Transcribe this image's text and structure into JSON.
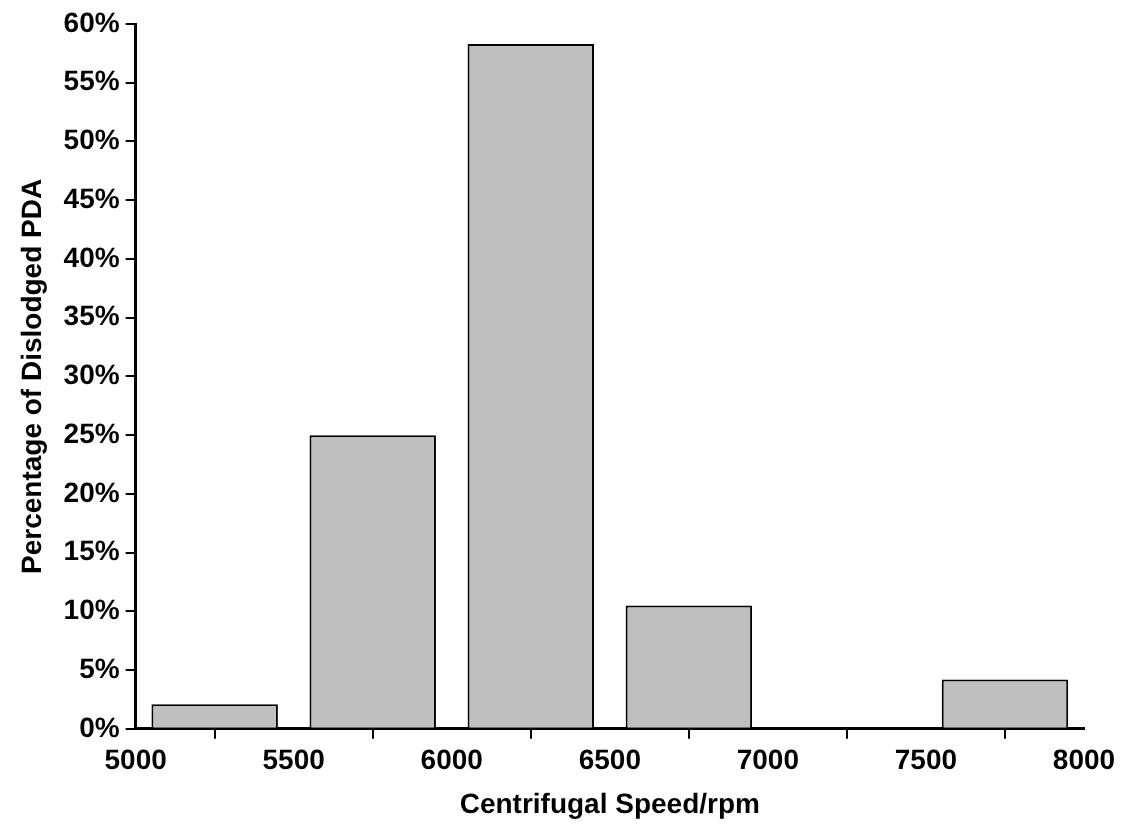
{
  "chart_data": {
    "type": "bar",
    "xlabel": "Centrifugal Speed/rpm",
    "ylabel": "Percentage of Dislodged PDA",
    "x": [
      5250,
      5750,
      6250,
      6750,
      7750
    ],
    "values": [
      2.1,
      25,
      58.3,
      10.5,
      4.2
    ],
    "color": "#bfbfbf",
    "xlim": [
      5000,
      8000
    ],
    "xticks": [
      5000,
      5500,
      6000,
      6500,
      7000,
      7500,
      8000
    ],
    "ylim": [
      0,
      60
    ],
    "yticks": [
      {
        "value": 0,
        "label": "0%"
      },
      {
        "value": 5,
        "label": "5%"
      },
      {
        "value": 10,
        "label": "10%"
      },
      {
        "value": 15,
        "label": "15%"
      },
      {
        "value": 20,
        "label": "20%"
      },
      {
        "value": 25,
        "label": "25%"
      },
      {
        "value": 30,
        "label": "30%"
      },
      {
        "value": 35,
        "label": "35%"
      },
      {
        "value": 40,
        "label": "40%"
      },
      {
        "value": 45,
        "label": "45%"
      },
      {
        "value": 50,
        "label": "50%"
      },
      {
        "value": 55,
        "label": "55%"
      },
      {
        "value": 60,
        "label": "60%"
      }
    ],
    "grid": false,
    "legend": false
  }
}
